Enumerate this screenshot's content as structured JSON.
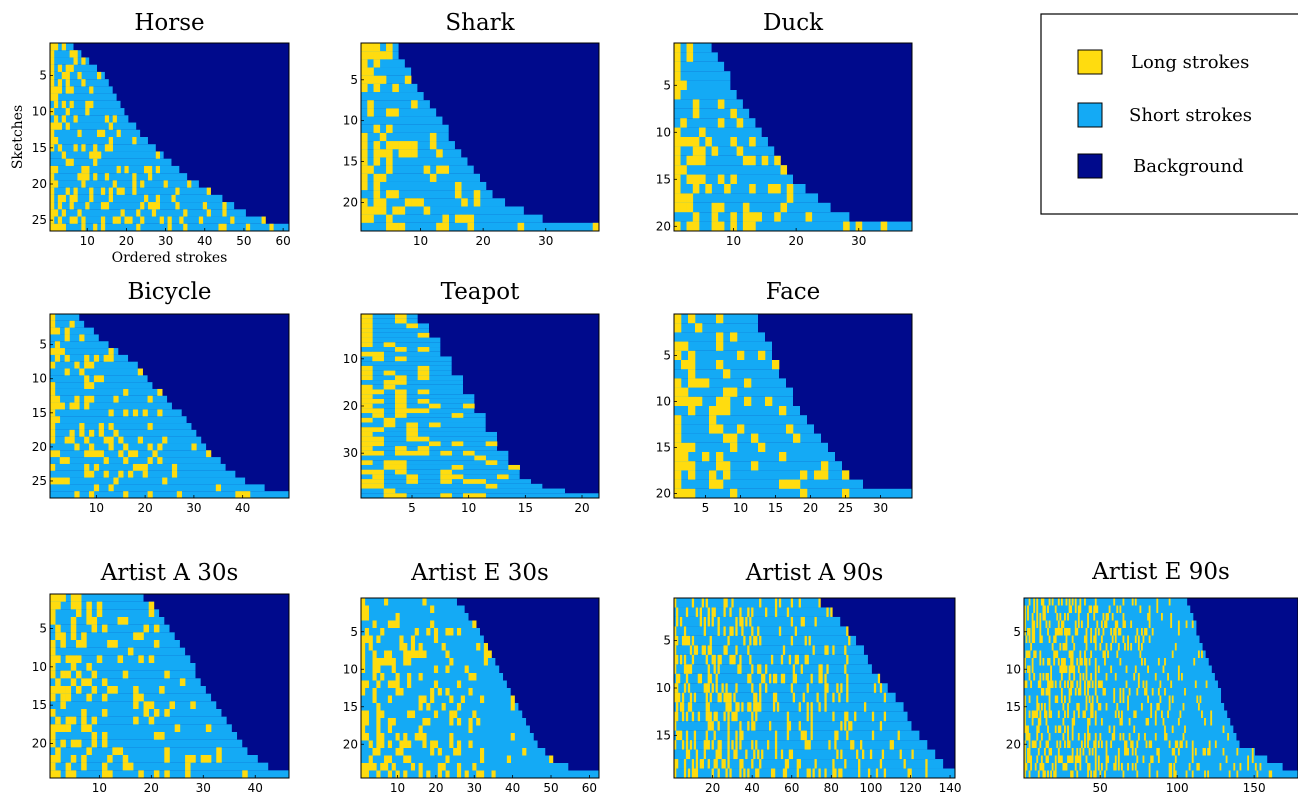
{
  "colors": {
    "long": "#ffdc0f",
    "short": "#14aaf5",
    "background": "#000a8c"
  },
  "legend": {
    "items": [
      {
        "key": "long",
        "label": "Long strokes"
      },
      {
        "key": "short",
        "label": "Short strokes"
      },
      {
        "key": "background",
        "label": "Background"
      }
    ]
  },
  "chart_data": [
    {
      "type": "heatmap",
      "title": "Horse",
      "xlabel": "Ordered strokes",
      "ylabel": "Sketches",
      "n_rows": 26,
      "n_cols": 61,
      "xlim": [
        0.5,
        61.5
      ],
      "ylim": [
        0.5,
        26.5
      ],
      "xticks": [
        10,
        20,
        30,
        40,
        50,
        60
      ],
      "yticks": [
        5,
        10,
        15,
        20,
        25
      ],
      "row_stroke_counts": [
        6,
        8,
        10,
        12,
        14,
        15,
        16,
        17,
        18,
        19,
        20,
        22,
        23,
        25,
        27,
        29,
        31,
        33,
        35,
        38,
        41,
        44,
        47,
        50,
        55,
        61
      ]
    },
    {
      "type": "heatmap",
      "title": "Shark",
      "xlabel": "",
      "ylabel": "",
      "n_rows": 23,
      "n_cols": 38,
      "xlim": [
        0.5,
        38.5
      ],
      "ylim": [
        0.5,
        23.5
      ],
      "xticks": [
        10,
        20,
        30
      ],
      "yticks": [
        5,
        10,
        15,
        20
      ],
      "row_stroke_counts": [
        6,
        6,
        7,
        8,
        8,
        9,
        10,
        11,
        12,
        13,
        14,
        14,
        15,
        16,
        17,
        18,
        19,
        20,
        21,
        23,
        26,
        29,
        38
      ]
    },
    {
      "type": "heatmap",
      "title": "Duck",
      "xlabel": "",
      "ylabel": "",
      "n_rows": 20,
      "n_cols": 38,
      "xlim": [
        0.5,
        38.5
      ],
      "ylim": [
        0.5,
        20.5
      ],
      "xticks": [
        10,
        20,
        30
      ],
      "yticks": [
        5,
        10,
        15,
        20
      ],
      "row_stroke_counts": [
        6,
        7,
        8,
        9,
        9,
        10,
        11,
        12,
        13,
        14,
        15,
        16,
        17,
        18,
        19,
        21,
        23,
        25,
        28,
        38
      ]
    },
    {
      "type": "heatmap",
      "title": "Bicycle",
      "xlabel": "",
      "ylabel": "",
      "n_rows": 27,
      "n_cols": 49,
      "xlim": [
        0.5,
        49.5
      ],
      "ylim": [
        0.5,
        27.5
      ],
      "xticks": [
        10,
        20,
        30,
        40
      ],
      "yticks": [
        5,
        10,
        15,
        20,
        25
      ],
      "row_stroke_counts": [
        6,
        7,
        9,
        10,
        12,
        14,
        16,
        18,
        19,
        20,
        21,
        23,
        24,
        25,
        27,
        28,
        29,
        30,
        31,
        32,
        33,
        35,
        36,
        38,
        40,
        44,
        49
      ]
    },
    {
      "type": "heatmap",
      "title": "Teapot",
      "xlabel": "",
      "ylabel": "",
      "n_rows": 39,
      "n_cols": 21,
      "xlim": [
        0.5,
        21.5
      ],
      "ylim": [
        0.5,
        39.5
      ],
      "xticks": [
        5,
        10,
        15,
        20
      ],
      "yticks": [
        10,
        20,
        30
      ],
      "row_stroke_counts": [
        5,
        5,
        6,
        6,
        6,
        7,
        7,
        7,
        7,
        8,
        8,
        8,
        8,
        9,
        9,
        9,
        9,
        10,
        10,
        10,
        10,
        11,
        11,
        11,
        11,
        12,
        12,
        12,
        12,
        13,
        13,
        13,
        14,
        14,
        14,
        15,
        16,
        18,
        21
      ]
    },
    {
      "type": "heatmap",
      "title": "Face",
      "xlabel": "",
      "ylabel": "",
      "n_rows": 20,
      "n_cols": 34,
      "xlim": [
        0.5,
        34.5
      ],
      "ylim": [
        0.5,
        20.5
      ],
      "xticks": [
        5,
        10,
        15,
        20,
        25,
        30
      ],
      "yticks": [
        5,
        10,
        15,
        20
      ],
      "row_stroke_counts": [
        12,
        12,
        13,
        14,
        14,
        15,
        15,
        16,
        17,
        17,
        18,
        19,
        20,
        21,
        22,
        23,
        24,
        25,
        27,
        34
      ]
    },
    {
      "type": "heatmap",
      "title": "Artist A 30s",
      "xlabel": "",
      "ylabel": "",
      "n_rows": 24,
      "n_cols": 46,
      "xlim": [
        0.5,
        46.5
      ],
      "ylim": [
        0.5,
        24.5
      ],
      "xticks": [
        10,
        20,
        30,
        40
      ],
      "yticks": [
        5,
        10,
        15,
        20
      ],
      "row_stroke_counts": [
        18,
        20,
        21,
        22,
        23,
        24,
        25,
        26,
        27,
        28,
        28,
        29,
        30,
        31,
        32,
        33,
        34,
        35,
        36,
        37,
        38,
        40,
        42,
        46
      ]
    },
    {
      "type": "heatmap",
      "title": "Artist E 30s",
      "xlabel": "",
      "ylabel": "",
      "n_rows": 24,
      "n_cols": 62,
      "xlim": [
        0.5,
        62.5
      ],
      "ylim": [
        0.5,
        24.5
      ],
      "xticks": [
        10,
        20,
        30,
        40,
        50,
        60
      ],
      "yticks": [
        5,
        10,
        15,
        20
      ],
      "row_stroke_counts": [
        25,
        27,
        28,
        30,
        31,
        32,
        33,
        34,
        35,
        36,
        37,
        38,
        39,
        40,
        41,
        42,
        43,
        44,
        45,
        46,
        48,
        50,
        54,
        62
      ]
    },
    {
      "type": "heatmap",
      "title": "Artist A 90s",
      "xlabel": "",
      "ylabel": "",
      "n_rows": 19,
      "n_cols": 142,
      "xlim": [
        0.5,
        142.5
      ],
      "ylim": [
        0.5,
        19.5
      ],
      "xticks": [
        20,
        40,
        60,
        80,
        100,
        120,
        140
      ],
      "yticks": [
        5,
        10,
        15
      ],
      "row_stroke_counts": [
        74,
        80,
        84,
        88,
        92,
        96,
        98,
        100,
        104,
        108,
        112,
        116,
        118,
        120,
        124,
        128,
        132,
        136,
        142
      ]
    },
    {
      "type": "heatmap",
      "title": "Artist E 90s",
      "xlabel": "",
      "ylabel": "",
      "n_rows": 24,
      "n_cols": 178,
      "xlim": [
        0.5,
        178.5
      ],
      "ylim": [
        0.5,
        24.5
      ],
      "xticks": [
        50,
        100,
        150
      ],
      "yticks": [
        5,
        10,
        15,
        20
      ],
      "row_stroke_counts": [
        106,
        108,
        110,
        112,
        112,
        114,
        116,
        118,
        120,
        122,
        124,
        126,
        128,
        128,
        130,
        132,
        134,
        136,
        138,
        140,
        150,
        158,
        168,
        178
      ]
    }
  ]
}
